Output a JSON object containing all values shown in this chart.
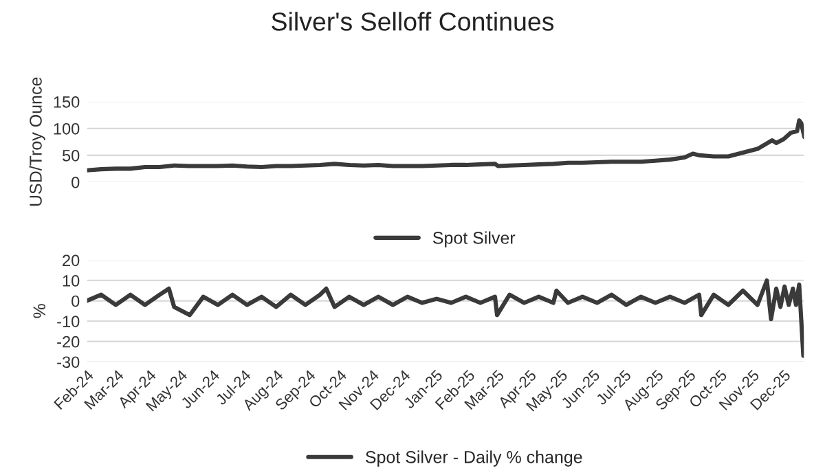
{
  "chart_data": [
    {
      "type": "line",
      "title": "Silver's Selloff Continues",
      "ylabel": "USD/Troy Ounce",
      "xlim": [
        "2024-02-01",
        "2025-12-21"
      ],
      "ylim": [
        0,
        150
      ],
      "yticks": [
        0,
        50,
        100,
        150
      ],
      "grid": "y",
      "legend": "bottom",
      "tick_labels": "y",
      "marker": "none",
      "line_style": "solid",
      "series": [
        {
          "name": "Spot Silver",
          "color": "#3a3a3a",
          "x": [
            "2024-02-01",
            "2024-02-15",
            "2024-02-29",
            "2024-03-14",
            "2024-03-28",
            "2024-04-11",
            "2024-04-25",
            "2024-05-09",
            "2024-05-23",
            "2024-06-06",
            "2024-06-20",
            "2024-07-04",
            "2024-07-18",
            "2024-08-01",
            "2024-08-15",
            "2024-08-29",
            "2024-09-12",
            "2024-09-26",
            "2024-10-10",
            "2024-10-24",
            "2024-11-07",
            "2024-11-21",
            "2024-12-05",
            "2024-12-19",
            "2025-01-02",
            "2025-01-16",
            "2025-01-30",
            "2025-02-13",
            "2025-02-27",
            "2025-03-02",
            "2025-03-13",
            "2025-03-27",
            "2025-04-10",
            "2025-04-24",
            "2025-05-08",
            "2025-05-22",
            "2025-06-05",
            "2025-06-19",
            "2025-07-03",
            "2025-07-17",
            "2025-07-31",
            "2025-08-14",
            "2025-08-28",
            "2025-09-05",
            "2025-09-11",
            "2025-09-25",
            "2025-10-09",
            "2025-10-23",
            "2025-11-06",
            "2025-11-20",
            "2025-11-24",
            "2025-12-01",
            "2025-12-08",
            "2025-12-14",
            "2025-12-16",
            "2025-12-18",
            "2025-12-21"
          ],
          "values": [
            22,
            24,
            25,
            25,
            28,
            28,
            31,
            30,
            30,
            30,
            31,
            29,
            28,
            30,
            30,
            31,
            32,
            34,
            32,
            31,
            32,
            30,
            30,
            30,
            31,
            32,
            32,
            33,
            34,
            30,
            31,
            32,
            33,
            34,
            36,
            36,
            37,
            38,
            38,
            38,
            40,
            42,
            46,
            53,
            50,
            48,
            48,
            55,
            62,
            78,
            73,
            80,
            92,
            95,
            115,
            110,
            84
          ]
        }
      ]
    },
    {
      "type": "line",
      "ylabel": "%",
      "xlim": [
        "2024-02-01",
        "2025-12-21"
      ],
      "xticks": [
        {
          "value": "2024-02-01",
          "label": "Feb-24"
        },
        {
          "value": "2024-03-01",
          "label": "Mar-24"
        },
        {
          "value": "2024-04-01",
          "label": "Apr-24"
        },
        {
          "value": "2024-05-01",
          "label": "May-24"
        },
        {
          "value": "2024-06-01",
          "label": "Jun-24"
        },
        {
          "value": "2024-07-01",
          "label": "Jul-24"
        },
        {
          "value": "2024-08-01",
          "label": "Aug-24"
        },
        {
          "value": "2024-09-01",
          "label": "Sep-24"
        },
        {
          "value": "2024-10-01",
          "label": "Oct-24"
        },
        {
          "value": "2024-11-01",
          "label": "Nov-24"
        },
        {
          "value": "2024-12-01",
          "label": "Dec-24"
        },
        {
          "value": "2025-01-01",
          "label": "Jan-25"
        },
        {
          "value": "2025-02-01",
          "label": "Feb-25"
        },
        {
          "value": "2025-03-01",
          "label": "Mar-25"
        },
        {
          "value": "2025-04-01",
          "label": "Apr-25"
        },
        {
          "value": "2025-05-01",
          "label": "May-25"
        },
        {
          "value": "2025-06-01",
          "label": "Jun-25"
        },
        {
          "value": "2025-07-01",
          "label": "Jul-25"
        },
        {
          "value": "2025-08-01",
          "label": "Aug-25"
        },
        {
          "value": "2025-09-01",
          "label": "Sep-25"
        },
        {
          "value": "2025-10-01",
          "label": "Oct-25"
        },
        {
          "value": "2025-11-01",
          "label": "Nov-25"
        },
        {
          "value": "2025-12-01",
          "label": "Dec-25"
        }
      ],
      "ylim": [
        -30,
        20
      ],
      "yticks": [
        -30,
        -20,
        -10,
        0,
        10,
        20
      ],
      "grid": "y",
      "legend": "bottom",
      "marker": "none",
      "line_style": "solid",
      "series": [
        {
          "name": "Spot Silver - Daily % change",
          "color": "#3a3a3a",
          "x": [
            "2024-02-01",
            "2024-02-15",
            "2024-02-29",
            "2024-03-14",
            "2024-03-28",
            "2024-04-11",
            "2024-04-20",
            "2024-04-25",
            "2024-05-10",
            "2024-05-23",
            "2024-06-06",
            "2024-06-20",
            "2024-07-04",
            "2024-07-18",
            "2024-08-01",
            "2024-08-15",
            "2024-08-29",
            "2024-09-12",
            "2024-09-18",
            "2024-09-26",
            "2024-10-10",
            "2024-10-24",
            "2024-11-07",
            "2024-11-21",
            "2024-12-05",
            "2024-12-19",
            "2025-01-02",
            "2025-01-16",
            "2025-01-30",
            "2025-02-13",
            "2025-02-27",
            "2025-03-01",
            "2025-03-13",
            "2025-03-27",
            "2025-04-10",
            "2025-04-24",
            "2025-04-27",
            "2025-05-08",
            "2025-05-22",
            "2025-06-05",
            "2025-06-19",
            "2025-07-03",
            "2025-07-17",
            "2025-07-31",
            "2025-08-14",
            "2025-08-28",
            "2025-09-11",
            "2025-09-13",
            "2025-09-25",
            "2025-10-09",
            "2025-10-23",
            "2025-11-06",
            "2025-11-15",
            "2025-11-19",
            "2025-11-24",
            "2025-11-28",
            "2025-12-02",
            "2025-12-06",
            "2025-12-10",
            "2025-12-13",
            "2025-12-16",
            "2025-12-20"
          ],
          "values": [
            0,
            3,
            -2,
            3,
            -2,
            3,
            6,
            -3,
            -7,
            2,
            -2,
            3,
            -2,
            2,
            -3,
            3,
            -2,
            3,
            6,
            -3,
            2,
            -2,
            2,
            -2,
            2,
            -1,
            1,
            -1,
            2,
            -1,
            2,
            -7,
            3,
            -1,
            2,
            -1,
            5,
            -1,
            2,
            -1,
            3,
            -2,
            2,
            -1,
            2,
            -1,
            3,
            -7,
            3,
            -2,
            5,
            -2,
            10,
            -9,
            6,
            -3,
            7,
            -2,
            6,
            -2,
            8,
            -27
          ]
        }
      ]
    }
  ]
}
